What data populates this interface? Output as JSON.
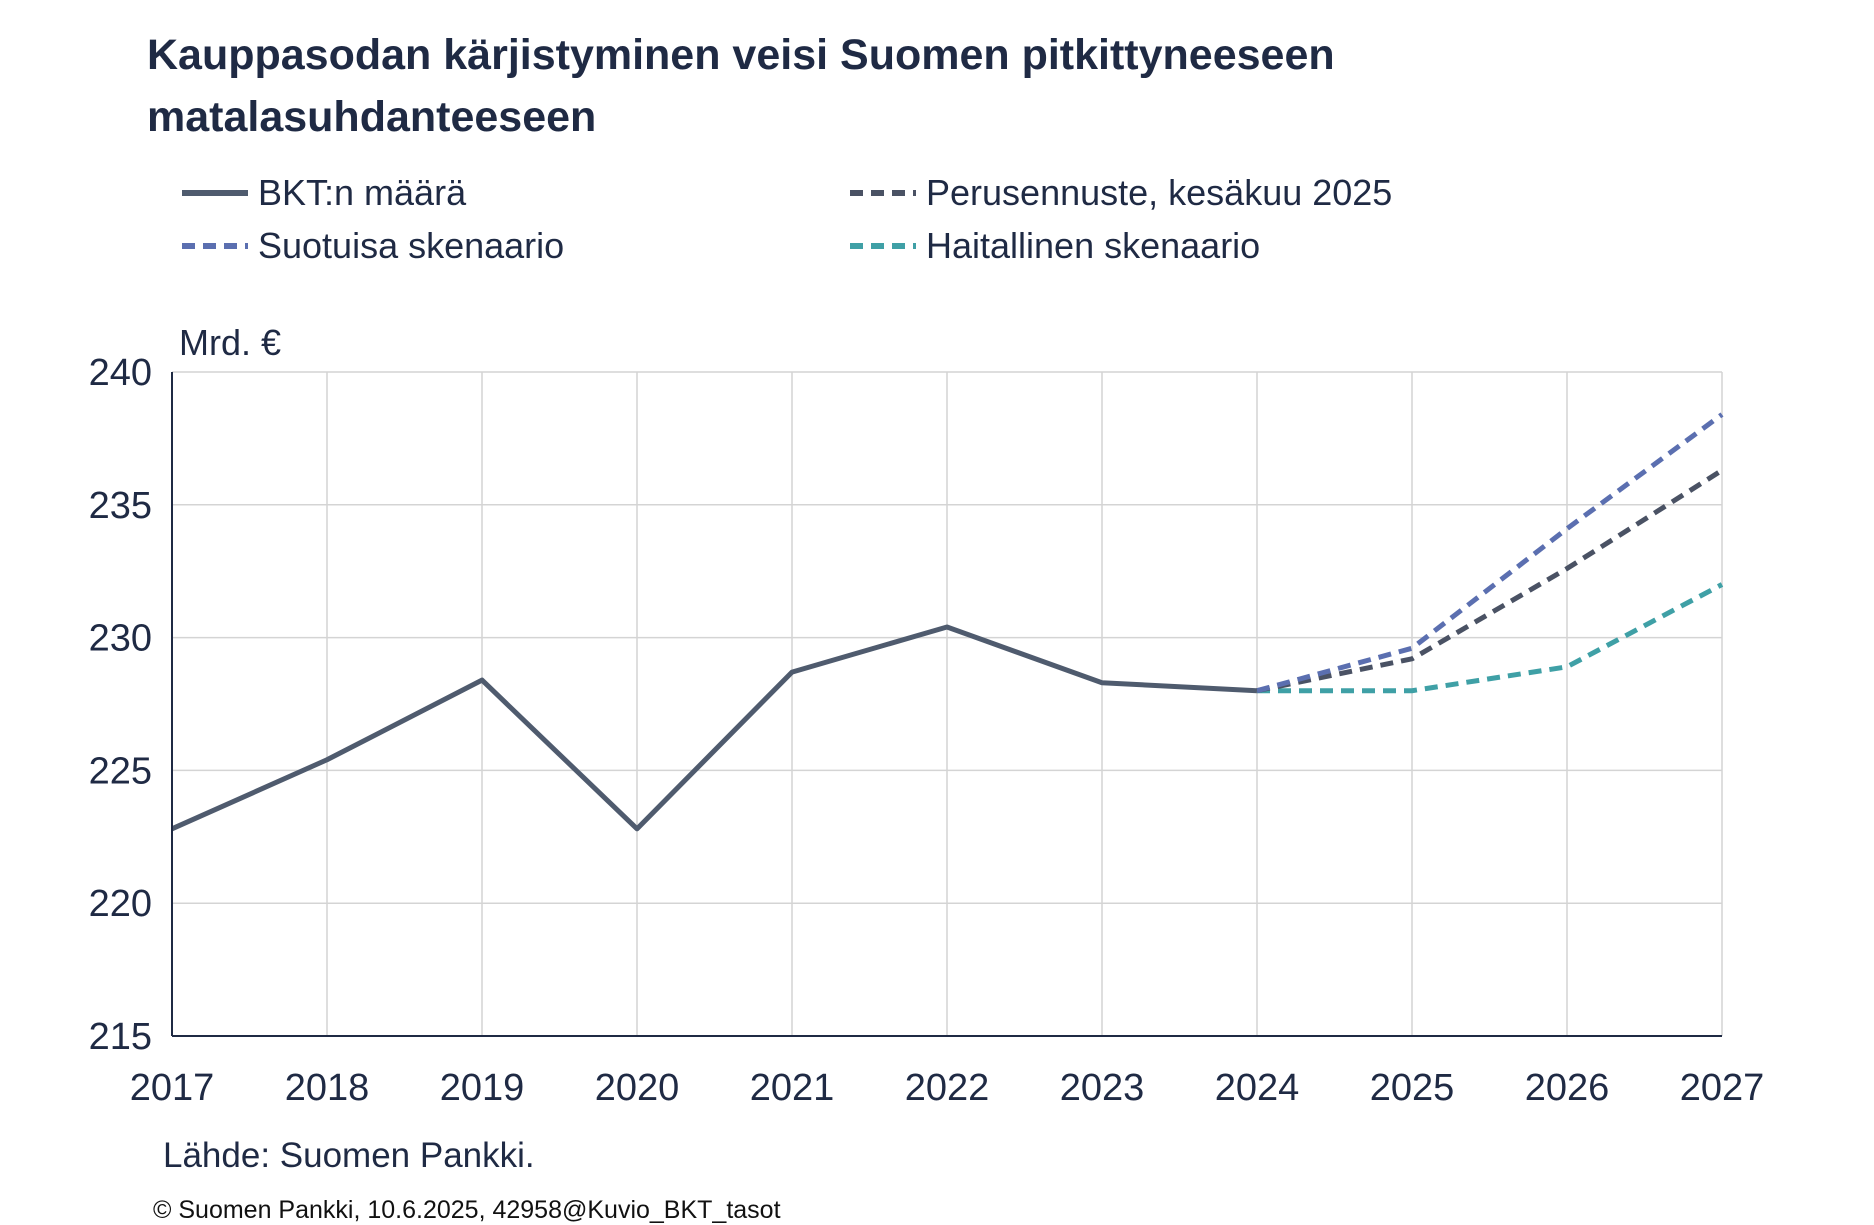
{
  "title": "Kauppasodan kärjistyminen veisi Suomen pitkittyneeseen matalasuhdanteeseen",
  "source": "Lähde: Suomen Pankki.",
  "copyright": "© Suomen Pankki, 10.6.2025, 42958@Kuvio_BKT_tasot",
  "colors": {
    "actual": "#4f5b6e",
    "baseline": "#4a5264",
    "favourable": "#5b6fb0",
    "adverse": "#3fa0a6",
    "grid": "#d4d4d4",
    "axis": "#1f2a44",
    "text": "#1f2a44"
  },
  "chart_data": {
    "type": "line",
    "ylabel": "Mrd. €",
    "ylim": [
      215,
      240
    ],
    "yticks": [
      215,
      220,
      225,
      230,
      235,
      240
    ],
    "categories": [
      "2017",
      "2018",
      "2019",
      "2020",
      "2021",
      "2022",
      "2023",
      "2024",
      "2025",
      "2026",
      "2027"
    ],
    "grid": true,
    "legend_position": "top",
    "series": [
      {
        "name": "BKT:n määrä",
        "style": "solid",
        "color_key": "actual",
        "values": [
          222.8,
          225.4,
          228.4,
          222.8,
          228.7,
          230.4,
          228.3,
          228.0,
          null,
          null,
          null
        ]
      },
      {
        "name": "Perusennuste, kesäkuu 2025",
        "style": "dashed",
        "color_key": "baseline",
        "values": [
          null,
          null,
          null,
          null,
          null,
          null,
          null,
          228.0,
          229.2,
          232.6,
          236.3
        ]
      },
      {
        "name": "Suotuisa skenaario",
        "style": "dashed",
        "color_key": "favourable",
        "values": [
          null,
          null,
          null,
          null,
          null,
          null,
          null,
          228.0,
          229.6,
          234.1,
          238.4
        ]
      },
      {
        "name": "Haitallinen skenaario",
        "style": "dashed",
        "color_key": "adverse",
        "values": [
          null,
          null,
          null,
          null,
          null,
          null,
          null,
          228.0,
          228.0,
          228.9,
          232.0
        ]
      }
    ]
  }
}
